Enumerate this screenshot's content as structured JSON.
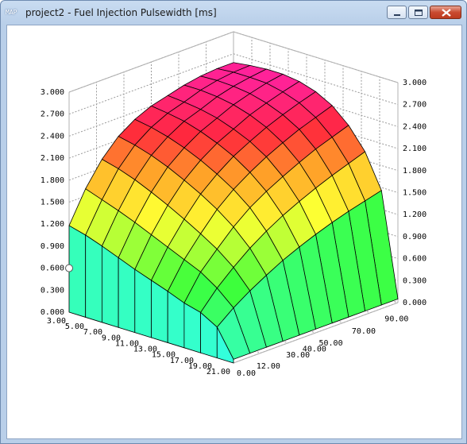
{
  "window": {
    "title": "project2 - Fuel Injection Pulsewidth [ms]",
    "app_icon_label": "MAP",
    "buttons": [
      "minimize",
      "maximize",
      "close"
    ]
  },
  "colors": {
    "titlebar": "#b9cfe9",
    "surface_low": "#33ffdd",
    "surface_mid": "#ffff33",
    "surface_high": "#ff2299"
  },
  "chart_data": {
    "type": "surface3d",
    "title": "",
    "z_ticks": [
      "0.000",
      "0.300",
      "0.600",
      "0.900",
      "1.200",
      "1.500",
      "1.800",
      "2.100",
      "2.400",
      "2.700",
      "3.000"
    ],
    "x_ticks": [
      "3.00",
      "5.00",
      "7.00",
      "9.00",
      "11.00",
      "13.00",
      "15.00",
      "17.00",
      "19.00",
      "21.00"
    ],
    "y_ticks": [
      "0.00",
      "12.00",
      "30.00",
      "40.00",
      "50.00",
      "70.00",
      "90.00"
    ],
    "x_range": [
      3,
      21
    ],
    "y_range": [
      0,
      100
    ],
    "z_range": [
      0,
      3
    ],
    "grid": true,
    "legend": "none",
    "surface_z_rows_front_to_back": [
      [
        0.05,
        0.42,
        0.55,
        0.61,
        0.7,
        0.78,
        0.86,
        0.95,
        1.04,
        1.12,
        1.18
      ],
      [
        0.05,
        0.6,
        0.8,
        0.95,
        1.05,
        1.15,
        1.25,
        1.35,
        1.44,
        1.52,
        1.6
      ],
      [
        0.05,
        0.75,
        1.0,
        1.18,
        1.32,
        1.45,
        1.57,
        1.68,
        1.78,
        1.86,
        1.92
      ],
      [
        0.05,
        0.88,
        1.18,
        1.4,
        1.57,
        1.71,
        1.83,
        1.94,
        2.03,
        2.1,
        2.15
      ],
      [
        0.05,
        1.0,
        1.33,
        1.58,
        1.76,
        1.9,
        2.02,
        2.12,
        2.2,
        2.26,
        2.3
      ],
      [
        0.05,
        1.1,
        1.46,
        1.72,
        1.91,
        2.06,
        2.17,
        2.26,
        2.33,
        2.37,
        2.4
      ],
      [
        0.05,
        1.19,
        1.57,
        1.84,
        2.04,
        2.18,
        2.28,
        2.36,
        2.41,
        2.44,
        2.46
      ],
      [
        0.05,
        1.27,
        1.67,
        1.95,
        2.15,
        2.29,
        2.39,
        2.46,
        2.5,
        2.52,
        2.52
      ],
      [
        0.05,
        1.34,
        1.76,
        2.05,
        2.25,
        2.38,
        2.47,
        2.53,
        2.56,
        2.57,
        2.56
      ],
      [
        0.05,
        1.4,
        1.84,
        2.13,
        2.33,
        2.46,
        2.54,
        2.59,
        2.6,
        2.6,
        2.58
      ],
      [
        0.05,
        1.46,
        1.92,
        2.21,
        2.41,
        2.53,
        2.6,
        2.63,
        2.63,
        2.61,
        2.58
      ]
    ]
  }
}
